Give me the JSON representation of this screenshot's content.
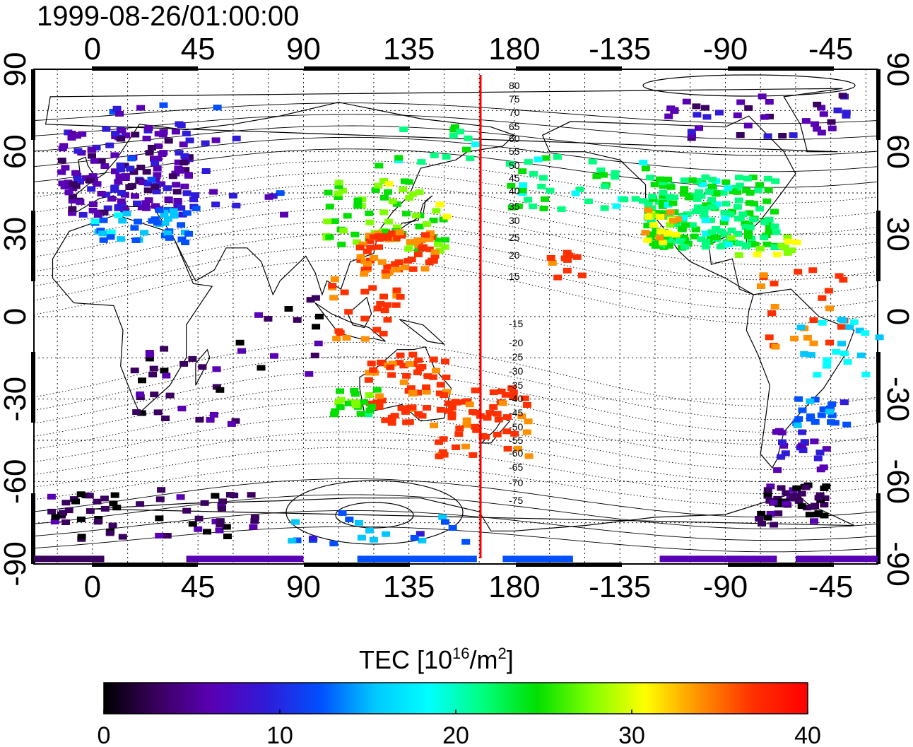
{
  "header": {
    "timestamp": "1999-08-26/01:00:00"
  },
  "map": {
    "lon_ticks": [
      "0",
      "45",
      "90",
      "135",
      "180",
      "-135",
      "-90",
      "-45"
    ],
    "lat_ticks": [
      "90",
      "60",
      "30",
      "0",
      "-30",
      "-60",
      "-90"
    ],
    "lon_range_deg": [
      -25,
      335
    ],
    "lat_range_deg": [
      -90,
      90
    ],
    "grid": "dotted every 15 degrees",
    "meridian_line": {
      "lon": 165,
      "color": "#ff0000"
    },
    "contour_labels_north": [
      "80",
      "75",
      "70",
      "65",
      "60",
      "55",
      "50",
      "45",
      "40",
      "35",
      "30",
      "25",
      "20",
      "15"
    ],
    "contour_labels_south": [
      "-15",
      "-20",
      "-25",
      "-30",
      "-35",
      "-40",
      "-45",
      "-50",
      "-55",
      "-60",
      "-65",
      "-70",
      "-75"
    ]
  },
  "colorbar": {
    "label_prefix": "TEC  [10",
    "label_exp1": "16",
    "label_mid": "/m",
    "label_exp2": "2",
    "label_suffix": "]",
    "ticks": [
      "0",
      "10",
      "20",
      "30",
      "40"
    ],
    "range": [
      0,
      40
    ],
    "colors": [
      "#000000",
      "#3a0060",
      "#5a00b4",
      "#2f1bd8",
      "#0050ff",
      "#00c8ff",
      "#00ffff",
      "#00ff80",
      "#00e000",
      "#80ff00",
      "#ffff00",
      "#ff9000",
      "#ff3000",
      "#ff0000"
    ]
  }
}
